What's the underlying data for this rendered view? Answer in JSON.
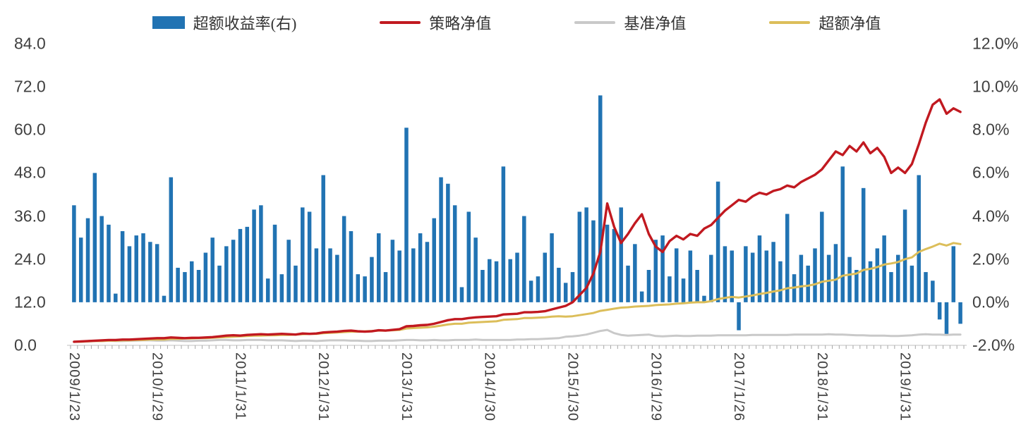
{
  "legend": {
    "items": [
      {
        "label": "超额收益率(右)",
        "type": "bar",
        "color": "#2173B3"
      },
      {
        "label": "策略净值",
        "type": "line",
        "color": "#C11920"
      },
      {
        "label": "基准净值",
        "type": "line",
        "color": "#C9C9C9"
      },
      {
        "label": "超额净值",
        "type": "line",
        "color": "#DCBE5A"
      }
    ]
  },
  "axes": {
    "left_ticks": [
      "84.0",
      "72.0",
      "60.0",
      "48.0",
      "36.0",
      "24.0",
      "12.0",
      "0.0"
    ],
    "right_ticks": [
      "12.0%",
      "10.0%",
      "8.0%",
      "6.0%",
      "4.0%",
      "2.0%",
      "0.0%",
      "-2.0%"
    ],
    "x_ticks": [
      "2009/1/23",
      "2010/1/29",
      "2011/1/31",
      "2012/1/31",
      "2013/1/31",
      "2014/1/30",
      "2015/1/30",
      "2016/1/29",
      "2017/1/26",
      "2018/1/31",
      "2019/1/31"
    ]
  },
  "chart_data": {
    "type": "bar+line combo",
    "x": {
      "frequency": "monthly",
      "start": "2009/1",
      "end": "2019/9",
      "points": 129,
      "tick_labels": [
        "2009/1/23",
        "2010/1/29",
        "2011/1/31",
        "2012/1/31",
        "2013/1/31",
        "2014/1/30",
        "2015/1/30",
        "2016/1/29",
        "2017/1/26",
        "2018/1/31",
        "2019/1/31"
      ],
      "tick_month_indices": [
        0,
        12,
        24,
        36,
        48,
        60,
        72,
        84,
        96,
        108,
        120
      ]
    },
    "left_axis": {
      "min": 0,
      "max": 84,
      "tick_step": 12
    },
    "right_axis": {
      "min": -2,
      "max": 12,
      "tick_step": 2,
      "unit": "%"
    },
    "legend_position": "top",
    "grid": false,
    "background": "#FFFFFF",
    "series": [
      {
        "name": "超额收益率(右)",
        "type": "bar",
        "axis": "right",
        "unit": "%",
        "color": "#2173B3",
        "values": [
          4.5,
          3.0,
          3.9,
          6.0,
          4.0,
          3.6,
          0.4,
          3.3,
          2.6,
          3.1,
          3.2,
          2.8,
          2.7,
          0.3,
          5.8,
          1.6,
          1.4,
          1.9,
          1.5,
          2.3,
          3.0,
          1.7,
          2.6,
          2.9,
          3.4,
          3.5,
          4.3,
          4.5,
          1.1,
          3.6,
          1.3,
          2.9,
          1.7,
          4.4,
          4.2,
          2.5,
          5.9,
          2.5,
          2.2,
          4.0,
          3.3,
          1.3,
          1.2,
          2.1,
          3.2,
          1.4,
          2.9,
          2.4,
          8.1,
          2.5,
          3.2,
          2.8,
          3.9,
          5.8,
          5.5,
          4.5,
          0.7,
          4.2,
          3.0,
          1.5,
          2.0,
          1.9,
          6.3,
          2.0,
          2.3,
          4.0,
          1.0,
          1.2,
          2.3,
          3.2,
          1.6,
          0.9,
          1.4,
          4.2,
          4.4,
          3.8,
          9.6,
          3.6,
          3.4,
          4.4,
          1.7,
          2.7,
          0.5,
          1.5,
          2.9,
          3.1,
          1.2,
          2.5,
          1.1,
          2.4,
          1.5,
          0.3,
          2.2,
          5.6,
          2.6,
          2.4,
          -1.3,
          2.6,
          2.3,
          3.1,
          2.4,
          2.8,
          1.9,
          4.1,
          1.3,
          2.2,
          1.7,
          2.5,
          4.2,
          2.2,
          2.7,
          6.3,
          2.1,
          1.5,
          5.3,
          1.9,
          2.5,
          3.1,
          1.4,
          2.2,
          4.3,
          1.7,
          5.9,
          1.4,
          1.0,
          -0.8,
          -1.5,
          2.6,
          -1.0
        ]
      },
      {
        "name": "策略净值",
        "type": "line",
        "axis": "left",
        "color": "#C11920",
        "values": [
          1.0,
          1.1,
          1.2,
          1.3,
          1.4,
          1.5,
          1.5,
          1.6,
          1.6,
          1.7,
          1.8,
          1.9,
          2.0,
          2.0,
          2.2,
          2.1,
          2.0,
          2.1,
          2.1,
          2.2,
          2.3,
          2.5,
          2.7,
          2.8,
          2.7,
          2.9,
          3.0,
          3.1,
          3.0,
          3.1,
          3.2,
          3.1,
          3.0,
          3.3,
          3.2,
          3.3,
          3.6,
          3.7,
          3.8,
          4.0,
          4.1,
          3.9,
          3.8,
          3.9,
          4.2,
          4.1,
          4.3,
          4.5,
          5.3,
          5.4,
          5.6,
          5.7,
          6.0,
          6.5,
          7.0,
          7.3,
          7.3,
          7.6,
          7.8,
          7.9,
          8.0,
          8.1,
          8.6,
          8.7,
          8.8,
          9.2,
          9.2,
          9.3,
          9.5,
          10.0,
          10.5,
          11.0,
          12.0,
          14.0,
          16.0,
          20.0,
          26.0,
          39.5,
          33.0,
          28.5,
          31.0,
          34.0,
          36.5,
          31.0,
          27.5,
          26.0,
          29.0,
          30.5,
          29.5,
          31.0,
          30.5,
          32.5,
          33.5,
          35.5,
          37.5,
          39.0,
          40.5,
          40.0,
          41.5,
          42.5,
          42.0,
          43.0,
          43.5,
          44.5,
          44.0,
          45.5,
          46.5,
          47.5,
          49.0,
          51.5,
          54.0,
          53.0,
          55.5,
          54.0,
          56.5,
          53.5,
          55.0,
          52.5,
          48.0,
          49.5,
          48.0,
          50.5,
          56.0,
          62.0,
          67.0,
          68.5,
          64.5,
          66.0,
          65.0
        ]
      },
      {
        "name": "基准净值",
        "type": "line",
        "axis": "left",
        "color": "#C9C9C9",
        "values": [
          1.0,
          1.0,
          1.1,
          1.2,
          1.2,
          1.3,
          1.2,
          1.2,
          1.3,
          1.3,
          1.4,
          1.4,
          1.3,
          1.3,
          1.4,
          1.3,
          1.2,
          1.2,
          1.3,
          1.3,
          1.4,
          1.5,
          1.5,
          1.4,
          1.4,
          1.5,
          1.5,
          1.5,
          1.4,
          1.4,
          1.4,
          1.3,
          1.2,
          1.3,
          1.3,
          1.2,
          1.3,
          1.4,
          1.4,
          1.4,
          1.3,
          1.3,
          1.2,
          1.2,
          1.3,
          1.3,
          1.3,
          1.4,
          1.5,
          1.5,
          1.4,
          1.4,
          1.5,
          1.4,
          1.4,
          1.5,
          1.5,
          1.5,
          1.6,
          1.5,
          1.5,
          1.5,
          1.5,
          1.5,
          1.6,
          1.6,
          1.7,
          1.7,
          1.8,
          1.9,
          2.0,
          2.4,
          2.5,
          2.7,
          3.0,
          3.5,
          4.0,
          4.3,
          3.4,
          2.9,
          2.7,
          2.8,
          2.9,
          3.0,
          2.6,
          2.5,
          2.6,
          2.7,
          2.6,
          2.6,
          2.7,
          2.7,
          2.7,
          2.8,
          2.8,
          2.8,
          2.8,
          2.8,
          2.9,
          2.9,
          2.9,
          2.9,
          2.9,
          2.9,
          3.0,
          3.0,
          3.0,
          3.0,
          3.0,
          3.1,
          3.0,
          3.0,
          2.9,
          2.8,
          2.8,
          2.7,
          2.7,
          2.7,
          2.6,
          2.6,
          2.7,
          2.8,
          3.0,
          3.1,
          3.0,
          3.0,
          2.9,
          3.0,
          3.0
        ]
      },
      {
        "name": "超额净值",
        "type": "line",
        "axis": "left",
        "color": "#DCBE5A",
        "values": [
          1.0,
          1.0,
          1.1,
          1.2,
          1.2,
          1.3,
          1.3,
          1.4,
          1.4,
          1.5,
          1.5,
          1.6,
          1.6,
          1.6,
          1.8,
          1.8,
          1.9,
          1.9,
          2.0,
          2.0,
          2.1,
          2.2,
          2.3,
          2.4,
          2.5,
          2.6,
          2.7,
          2.7,
          2.8,
          2.8,
          2.9,
          2.9,
          3.0,
          3.1,
          3.2,
          3.2,
          3.4,
          3.5,
          3.6,
          3.7,
          3.8,
          3.8,
          3.9,
          4.0,
          4.1,
          4.1,
          4.2,
          4.3,
          4.7,
          4.8,
          4.9,
          5.0,
          5.2,
          5.5,
          5.8,
          6.0,
          6.0,
          6.3,
          6.4,
          6.5,
          6.6,
          6.7,
          7.1,
          7.2,
          7.3,
          7.6,
          7.6,
          7.7,
          7.8,
          8.0,
          8.1,
          8.0,
          8.1,
          8.4,
          8.7,
          9.0,
          9.6,
          9.9,
          10.2,
          10.5,
          10.6,
          10.8,
          10.9,
          11.0,
          11.2,
          11.3,
          11.4,
          11.6,
          11.7,
          11.9,
          12.0,
          12.0,
          12.3,
          12.9,
          13.2,
          13.5,
          13.3,
          13.6,
          13.9,
          14.3,
          14.6,
          15.0,
          15.3,
          15.9,
          16.1,
          16.4,
          16.6,
          17.0,
          17.7,
          18.0,
          18.3,
          19.4,
          19.7,
          20.0,
          21.0,
          21.3,
          21.8,
          22.5,
          22.8,
          23.2,
          24.0,
          24.5,
          26.0,
          26.8,
          27.5,
          28.3,
          27.8,
          28.5,
          28.2
        ]
      }
    ]
  }
}
